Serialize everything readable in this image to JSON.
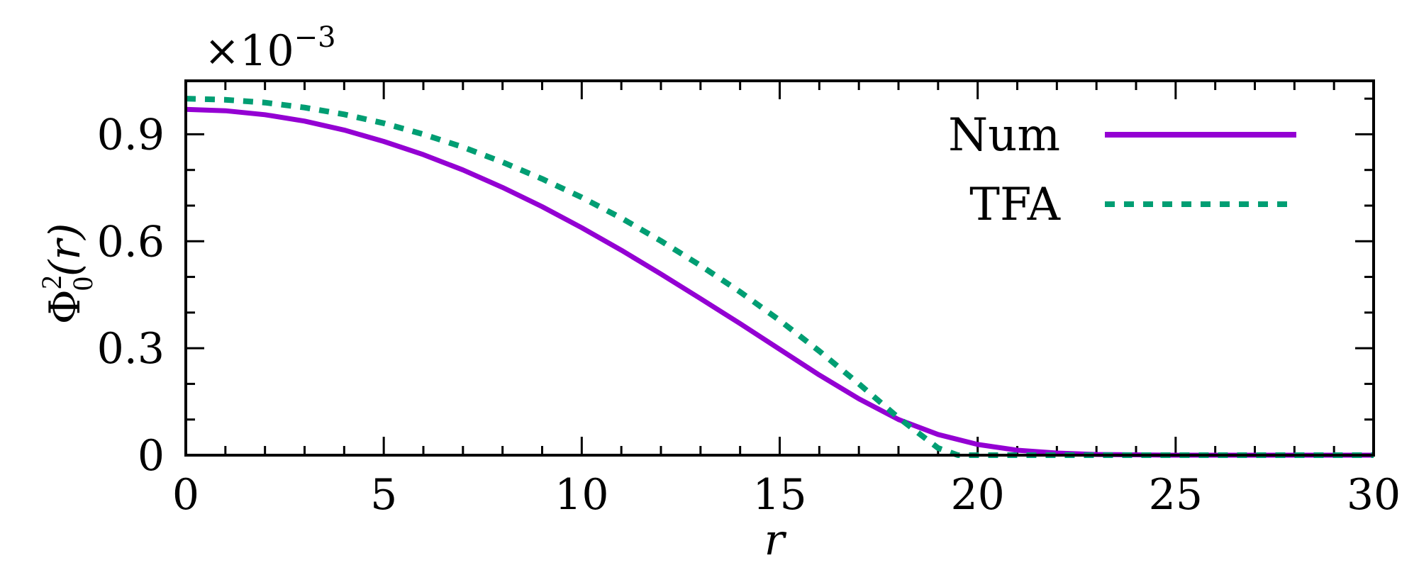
{
  "chart_data": {
    "type": "line",
    "title": "",
    "xlabel": "r",
    "ylabel": {
      "base": "Φ",
      "superscript": "2",
      "subscript": "0",
      "arg": "(r)"
    },
    "y_scale_factor": {
      "prefix": "×10",
      "exponent": "−3"
    },
    "xlim": [
      0,
      30
    ],
    "ylim": [
      0,
      1.05
    ],
    "x_ticks": [
      0,
      5,
      10,
      15,
      20,
      25,
      30
    ],
    "x_tick_labels": [
      "0",
      "5",
      "10",
      "15",
      "20",
      "25",
      "30"
    ],
    "y_ticks": [
      0,
      0.3,
      0.6,
      0.9
    ],
    "y_tick_labels": [
      "0",
      "0.3",
      "0.6",
      "0.9"
    ],
    "grid": false,
    "legend_position": "top-right",
    "series": [
      {
        "name": "Num",
        "style": "solid",
        "color": "#9400d3",
        "x": [
          0,
          1,
          2,
          3,
          4,
          5,
          6,
          7,
          8,
          9,
          10,
          11,
          12,
          13,
          14,
          15,
          16,
          17,
          18,
          19,
          20,
          21,
          22,
          23,
          24,
          25,
          26,
          27,
          28,
          29,
          30
        ],
        "y": [
          0.97,
          0.966,
          0.955,
          0.937,
          0.912,
          0.88,
          0.843,
          0.8,
          0.751,
          0.697,
          0.638,
          0.575,
          0.508,
          0.439,
          0.369,
          0.297,
          0.225,
          0.158,
          0.1,
          0.058,
          0.03,
          0.014,
          0.006,
          0.002,
          0.001,
          0,
          0,
          0,
          0,
          0,
          0
        ]
      },
      {
        "name": "TFA",
        "style": "dotted",
        "color": "#009e73",
        "x": [
          0,
          1,
          2,
          3,
          4,
          5,
          6,
          7,
          8,
          9,
          10,
          11,
          12,
          13,
          14,
          15,
          16,
          17,
          18,
          19,
          19.5,
          20,
          21,
          22,
          23,
          24,
          25,
          26,
          27,
          28,
          29,
          30
        ],
        "y": [
          1.0,
          0.997,
          0.989,
          0.975,
          0.956,
          0.931,
          0.9,
          0.864,
          0.822,
          0.775,
          0.723,
          0.665,
          0.601,
          0.532,
          0.458,
          0.378,
          0.292,
          0.2,
          0.105,
          0.02,
          0,
          0,
          0,
          0,
          0,
          0,
          0,
          0,
          0,
          0,
          0,
          0
        ]
      }
    ]
  }
}
